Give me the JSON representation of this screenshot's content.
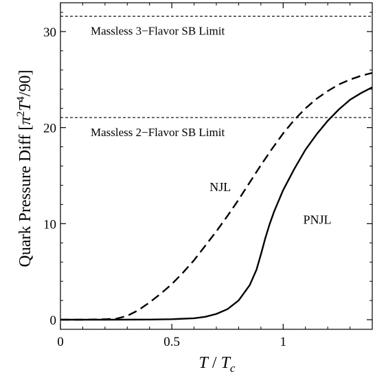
{
  "chart_data": {
    "type": "line",
    "xlabel_parts": {
      "t": "T",
      "slash": " / ",
      "tc": "T",
      "tc_sub": "c"
    },
    "ylabel_parts": {
      "text": "Quark Pressure Diff  [",
      "pi": "π",
      "sup2": "2",
      "t": "T",
      "sup4": "4",
      "tail": "/90]"
    },
    "xlim": [
      0,
      1.4
    ],
    "ylim": [
      -1,
      33
    ],
    "xticks": [
      0,
      0.5,
      1
    ],
    "xticklabels": [
      "0",
      "0.5",
      "1"
    ],
    "yticks": [
      0,
      10,
      20,
      30
    ],
    "yticklabels": [
      "0",
      "10",
      "20",
      "30"
    ],
    "grid": false,
    "reference_lines": [
      {
        "label": "Massless 3−Flavor SB Limit",
        "y": 31.6
      },
      {
        "label": "Massless 2−Flavor SB Limit",
        "y": 21.05
      }
    ],
    "series": [
      {
        "name": "NJL",
        "style": "dashed",
        "x": [
          0,
          0.1,
          0.2,
          0.25,
          0.3,
          0.35,
          0.4,
          0.45,
          0.5,
          0.55,
          0.6,
          0.65,
          0.7,
          0.75,
          0.8,
          0.85,
          0.9,
          0.95,
          1.0,
          1.05,
          1.1,
          1.15,
          1.2,
          1.25,
          1.3,
          1.35,
          1.4
        ],
        "y": [
          0,
          0,
          0.05,
          0.1,
          0.4,
          1.0,
          1.8,
          2.7,
          3.7,
          4.9,
          6.2,
          7.7,
          9.2,
          10.8,
          12.5,
          14.3,
          16.1,
          17.8,
          19.4,
          20.8,
          22.0,
          23.0,
          23.8,
          24.5,
          25.0,
          25.4,
          25.7
        ]
      },
      {
        "name": "PNJL",
        "style": "solid",
        "x": [
          0,
          0.2,
          0.4,
          0.5,
          0.6,
          0.65,
          0.7,
          0.75,
          0.8,
          0.85,
          0.88,
          0.9,
          0.92,
          0.94,
          0.96,
          0.98,
          1.0,
          1.05,
          1.1,
          1.15,
          1.2,
          1.25,
          1.3,
          1.35,
          1.4
        ],
        "y": [
          0,
          0,
          0.02,
          0.05,
          0.15,
          0.3,
          0.6,
          1.1,
          2.0,
          3.6,
          5.2,
          6.8,
          8.5,
          10.0,
          11.3,
          12.4,
          13.5,
          15.7,
          17.7,
          19.3,
          20.7,
          21.9,
          22.9,
          23.6,
          24.2
        ]
      }
    ],
    "annotations": [
      {
        "text": "NJL",
        "x": 0.67,
        "y": 13.4
      },
      {
        "text": "PNJL",
        "x": 1.09,
        "y": 10.0
      }
    ]
  }
}
